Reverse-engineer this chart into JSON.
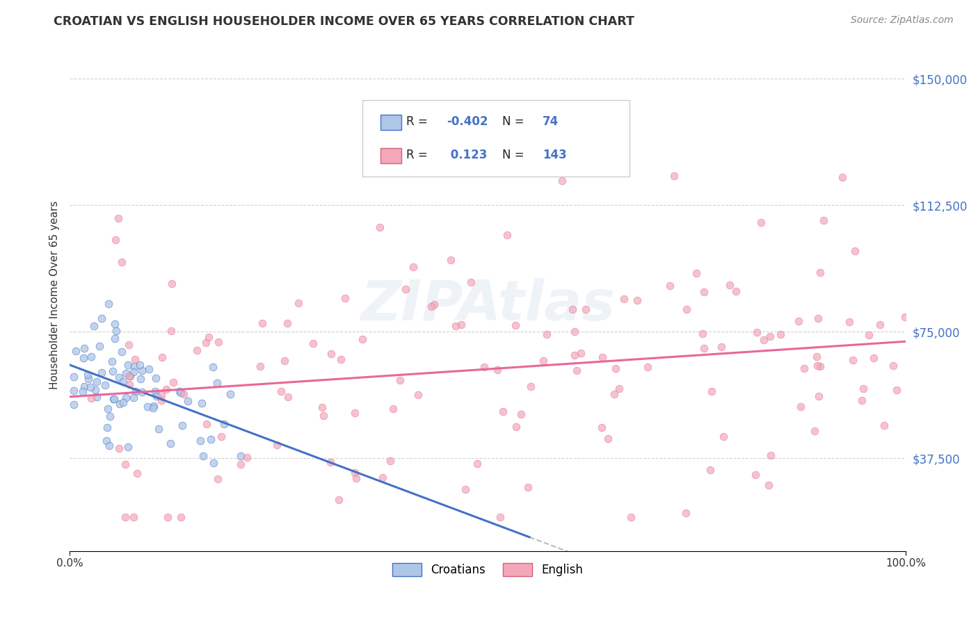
{
  "title": "CROATIAN VS ENGLISH HOUSEHOLDER INCOME OVER 65 YEARS CORRELATION CHART",
  "source": "Source: ZipAtlas.com",
  "ylabel": "Householder Income Over 65 years",
  "xlim": [
    0,
    100
  ],
  "ylim": [
    10000,
    162000
  ],
  "yticks": [
    37500,
    75000,
    112500,
    150000
  ],
  "ytick_labels": [
    "$37,500",
    "$75,000",
    "$112,500",
    "$150,000"
  ],
  "xtick_labels": [
    "0.0%",
    "100.0%"
  ],
  "color_croatian_fill": "#AEC6E8",
  "color_croatian_edge": "#4472C4",
  "color_english_fill": "#F4A7B9",
  "color_english_edge": "#D4607A",
  "color_line_croatian": "#4472C4",
  "color_line_english": "#E8679A",
  "color_trend_ext": "#BBBBBB",
  "watermark": "ZIPAtlas",
  "background_color": "#FFFFFF",
  "grid_color": "#CCCCCC",
  "ytick_color": "#4472C4",
  "title_color": "#333333",
  "source_color": "#888888",
  "legend_border_color": "#CCCCCC",
  "r1_val": "-0.402",
  "n1_val": "74",
  "r2_val": "0.123",
  "n2_val": "143",
  "seed": 7,
  "n_croatian": 74,
  "n_english": 143,
  "cr_x_mean": 7,
  "cr_x_std": 6,
  "cr_intercept": 65000,
  "cr_slope": -900,
  "cr_noise": 10000,
  "en_intercept": 58000,
  "en_slope": 170,
  "en_noise": 22000,
  "cr_line_x0": 0,
  "cr_line_x1": 55,
  "cr_ext_x0": 55,
  "cr_ext_x1": 100,
  "en_line_x0": 0,
  "en_line_x1": 100,
  "marker_size": 60
}
